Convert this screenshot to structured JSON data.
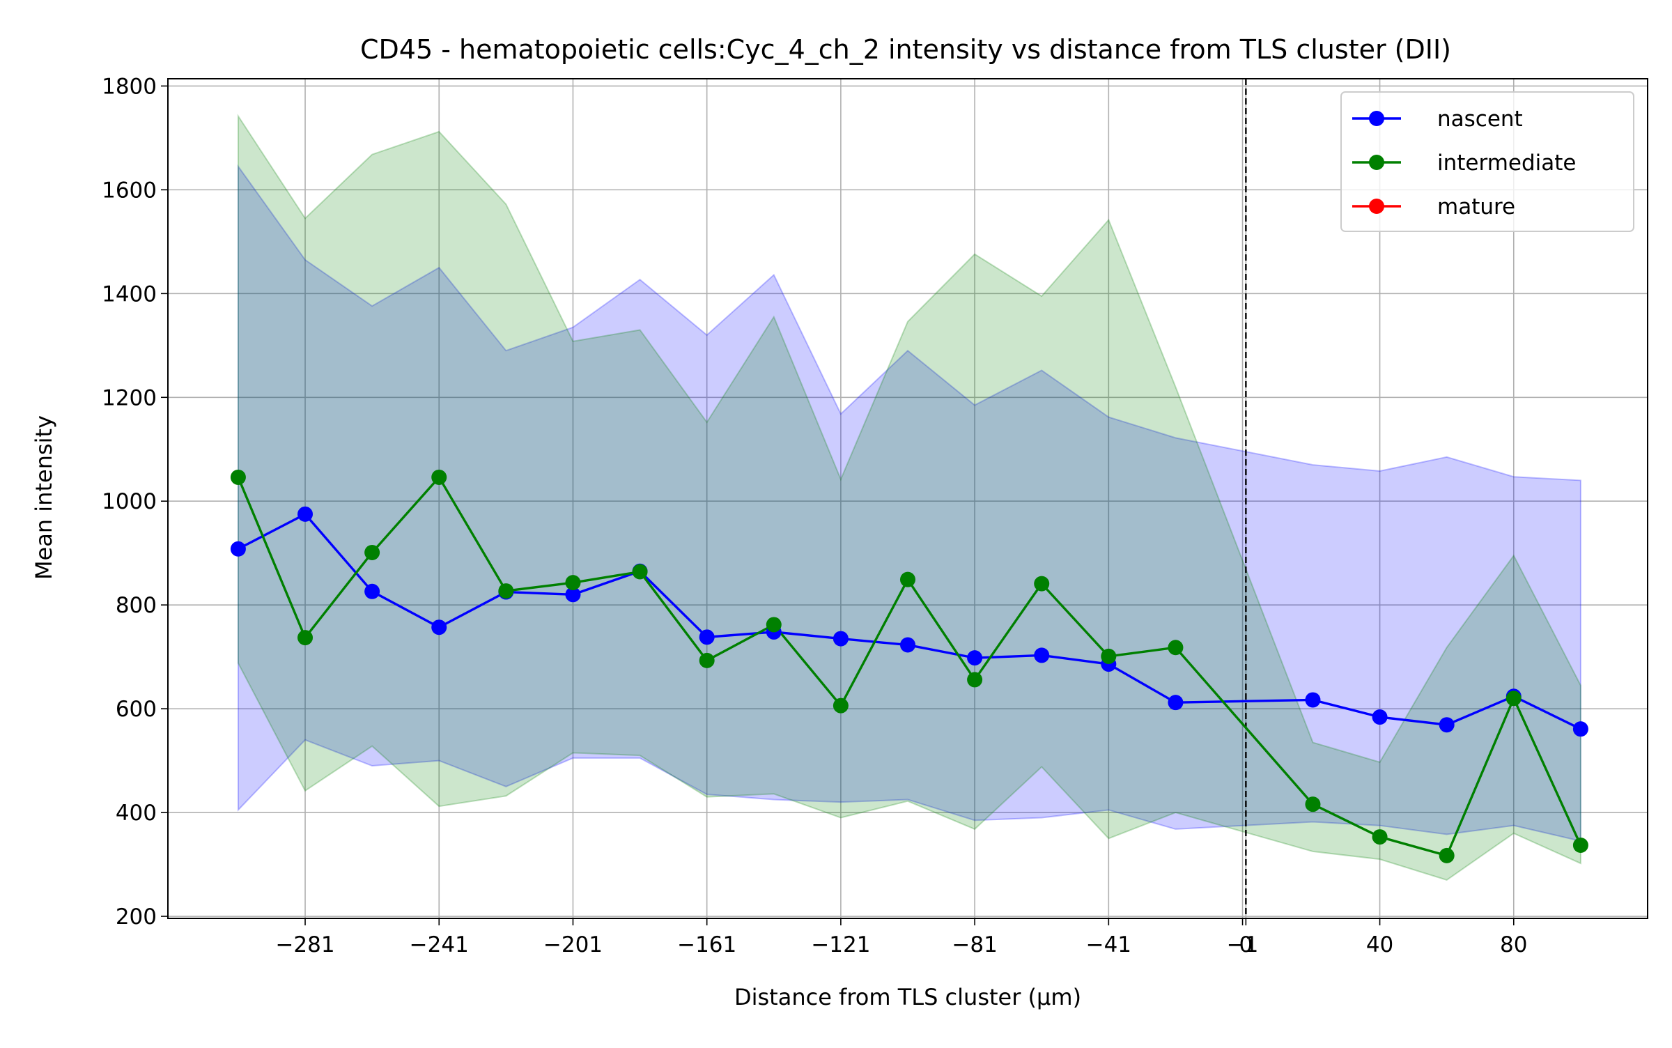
{
  "chart_data": {
    "type": "line",
    "title": "CD45 - hematopoietic cells:Cyc_4_ch_2 intensity vs distance from TLS cluster (DII)",
    "xlabel": "Distance from TLS cluster (μm)",
    "ylabel": "Mean intensity",
    "xticks": [
      -281,
      -241,
      -201,
      -161,
      -121,
      -81,
      -41,
      -1,
      0,
      40,
      80
    ],
    "xtick_labels": [
      "−281",
      "−241",
      "−201",
      "−161",
      "−121",
      "−81",
      "−41",
      "−1",
      "0",
      "40",
      "80"
    ],
    "yticks": [
      200,
      400,
      600,
      800,
      1000,
      1200,
      1400,
      1600,
      1800
    ],
    "yticklabels": [
      "200",
      "400",
      "600",
      "800",
      "1000",
      "1200",
      "1400",
      "1600",
      "1800"
    ],
    "xlim": [
      -322,
      120
    ],
    "ylim": [
      196,
      1814
    ],
    "grid": true,
    "legend_position": "upper right",
    "vline": {
      "x": 0,
      "style": "dashed",
      "color": "#000000"
    },
    "series": [
      {
        "name": "nascent",
        "color": "#0000ff",
        "band_color": "#0000ff",
        "x": [
          -301,
          -281,
          -261,
          -241,
          -221,
          -201,
          -181,
          -161,
          -141,
          -121,
          -101,
          -81,
          -61,
          -41,
          -21,
          20,
          40,
          60,
          80,
          100
        ],
        "y": [
          908,
          975,
          826,
          757,
          825,
          820,
          865,
          738,
          748,
          735,
          723,
          698,
          703,
          686,
          612,
          617,
          584,
          569,
          624,
          561
        ],
        "upper": [
          1645,
          1465,
          1376,
          1450,
          1290,
          1335,
          1427,
          1320,
          1436,
          1168,
          1290,
          1185,
          1252,
          1162,
          1122,
          1070,
          1058,
          1085,
          1047,
          1040
        ],
        "lower": [
          405,
          540,
          490,
          500,
          450,
          505,
          505,
          435,
          425,
          420,
          425,
          385,
          390,
          405,
          368,
          382,
          375,
          358,
          375,
          345
        ]
      },
      {
        "name": "intermediate",
        "color": "#008000",
        "band_color": "#008000",
        "x": [
          -301,
          -281,
          -261,
          -241,
          -221,
          -201,
          -181,
          -161,
          -141,
          -121,
          -101,
          -81,
          -61,
          -41,
          -21,
          20,
          40,
          60,
          80,
          100
        ],
        "y": [
          1046,
          737,
          901,
          1046,
          827,
          843,
          864,
          693,
          762,
          606,
          849,
          656,
          841,
          701,
          718,
          416,
          353,
          317,
          620,
          337
        ],
        "upper": [
          1742,
          1545,
          1668,
          1712,
          1572,
          1308,
          1330,
          1152,
          1355,
          1042,
          1346,
          1476,
          1395,
          1542,
          1220,
          535,
          497,
          718,
          895,
          645
        ],
        "lower": [
          688,
          442,
          528,
          412,
          432,
          515,
          510,
          430,
          436,
          390,
          422,
          368,
          488,
          350,
          400,
          325,
          310,
          270,
          360,
          302
        ]
      },
      {
        "name": "mature",
        "color": "#ff0000",
        "band_color": "#ff0000",
        "x": [],
        "y": [],
        "upper": [],
        "lower": []
      }
    ]
  }
}
